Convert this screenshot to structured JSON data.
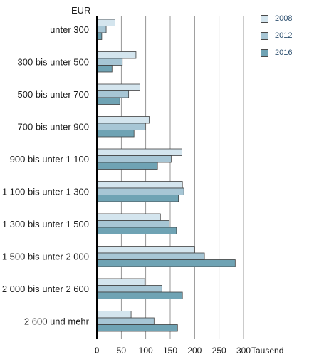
{
  "chart_data": {
    "type": "bar",
    "orientation": "horizontal",
    "unit_label": "EUR",
    "x_unit": "Tausend",
    "categories": [
      "unter 300",
      "300 bis unter 500",
      "500 bis unter 700",
      "700 bis unter 900",
      "900 bis unter 1 100",
      "1 100 bis unter 1 300",
      "1 300 bis unter 1 500",
      "1 500 bis unter  2 000",
      "2 000 bis unter 2 600",
      "2 600 und mehr"
    ],
    "series": [
      {
        "name": "2008",
        "color": "#d4e5ee",
        "values": [
          37,
          80,
          88,
          107,
          174,
          175,
          130,
          200,
          98,
          70
        ]
      },
      {
        "name": "2012",
        "color": "#a7c6d5",
        "values": [
          19,
          52,
          65,
          99,
          152,
          178,
          148,
          220,
          133,
          117
        ]
      },
      {
        "name": "2016",
        "color": "#6fa3b4",
        "values": [
          10,
          31,
          47,
          76,
          124,
          167,
          163,
          283,
          175,
          165
        ]
      }
    ],
    "x_ticks": [
      "0",
      "50",
      "100",
      "150",
      "200",
      "250",
      "300"
    ],
    "xlim": [
      0,
      300
    ],
    "grid": true,
    "legend_position": "top-right"
  }
}
